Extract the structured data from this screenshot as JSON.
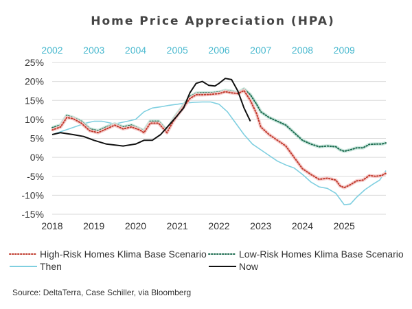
{
  "chart_data": {
    "type": "line",
    "title": "Home Price Appreciation (HPA)",
    "xlabel": "",
    "ylabel": "",
    "x_axis": {
      "range": [
        2018.0,
        2026.0
      ],
      "ticks": [
        2018,
        2019,
        2020,
        2021,
        2022,
        2023,
        2024,
        2025
      ],
      "tick_labels": [
        "2018",
        "2019",
        "2020",
        "2021",
        "2022",
        "2023",
        "2024",
        "2025"
      ]
    },
    "top_axis": {
      "tick_labels": [
        "2002",
        "2003",
        "2004",
        "2005",
        "2006",
        "2007",
        "2008",
        "2009"
      ],
      "color": "#4ab9cf"
    },
    "y_axis": {
      "range": [
        -15,
        25
      ],
      "ticks": [
        -15,
        -10,
        -5,
        0,
        5,
        10,
        15,
        20,
        25
      ],
      "tick_labels": [
        "-15%",
        "-10%",
        "-5%",
        "0%",
        "5%",
        "10%",
        "15%",
        "20%",
        "25%"
      ]
    },
    "grid": "horizontal",
    "legend_placement": "bottom",
    "series": [
      {
        "name": "High-Risk Homes Klima Base Scenario",
        "key": "high",
        "color": "#c0392b",
        "style": "dotted",
        "points": [
          [
            2018.0,
            7.2
          ],
          [
            2018.2,
            8.0
          ],
          [
            2018.35,
            10.5
          ],
          [
            2018.5,
            10.2
          ],
          [
            2018.7,
            9.0
          ],
          [
            2018.9,
            7.0
          ],
          [
            2019.1,
            6.5
          ],
          [
            2019.3,
            7.5
          ],
          [
            2019.5,
            8.5
          ],
          [
            2019.7,
            7.5
          ],
          [
            2019.9,
            8.0
          ],
          [
            2020.1,
            7.2
          ],
          [
            2020.2,
            6.5
          ],
          [
            2020.35,
            9.0
          ],
          [
            2020.55,
            9.0
          ],
          [
            2020.75,
            6.5
          ],
          [
            2020.9,
            9.5
          ],
          [
            2021.1,
            12.5
          ],
          [
            2021.3,
            15.5
          ],
          [
            2021.45,
            16.5
          ],
          [
            2021.6,
            16.5
          ],
          [
            2021.8,
            16.6
          ],
          [
            2022.0,
            16.8
          ],
          [
            2022.15,
            17.3
          ],
          [
            2022.3,
            17.0
          ],
          [
            2022.45,
            16.8
          ],
          [
            2022.6,
            17.6
          ],
          [
            2022.75,
            15.0
          ],
          [
            2022.9,
            11.5
          ],
          [
            2023.0,
            8.0
          ],
          [
            2023.2,
            6.0
          ],
          [
            2023.4,
            4.5
          ],
          [
            2023.6,
            3.0
          ],
          [
            2023.8,
            0.0
          ],
          [
            2024.0,
            -3.0
          ],
          [
            2024.2,
            -4.5
          ],
          [
            2024.4,
            -5.8
          ],
          [
            2024.6,
            -5.5
          ],
          [
            2024.8,
            -6.0
          ],
          [
            2024.9,
            -7.5
          ],
          [
            2025.0,
            -8.0
          ],
          [
            2025.15,
            -7.2
          ],
          [
            2025.3,
            -6.2
          ],
          [
            2025.45,
            -6.0
          ],
          [
            2025.6,
            -4.8
          ],
          [
            2025.75,
            -5.0
          ],
          [
            2025.9,
            -4.8
          ],
          [
            2026.0,
            -4.2
          ]
        ]
      },
      {
        "name": "Low-Risk Homes Klima Base Scenario",
        "key": "low",
        "color": "#1a6b4e",
        "style": "dotted",
        "points": [
          [
            2018.0,
            7.8
          ],
          [
            2018.2,
            8.5
          ],
          [
            2018.35,
            11.0
          ],
          [
            2018.5,
            10.5
          ],
          [
            2018.7,
            9.5
          ],
          [
            2018.9,
            7.5
          ],
          [
            2019.1,
            7.0
          ],
          [
            2019.3,
            8.0
          ],
          [
            2019.5,
            8.8
          ],
          [
            2019.7,
            8.0
          ],
          [
            2019.9,
            8.5
          ],
          [
            2020.1,
            7.5
          ],
          [
            2020.2,
            7.0
          ],
          [
            2020.35,
            9.5
          ],
          [
            2020.55,
            9.5
          ],
          [
            2020.75,
            7.0
          ],
          [
            2020.9,
            10.0
          ],
          [
            2021.1,
            13.0
          ],
          [
            2021.3,
            16.0
          ],
          [
            2021.45,
            16.9
          ],
          [
            2021.6,
            17.0
          ],
          [
            2021.8,
            17.0
          ],
          [
            2022.0,
            17.2
          ],
          [
            2022.15,
            17.6
          ],
          [
            2022.3,
            17.4
          ],
          [
            2022.45,
            17.0
          ],
          [
            2022.6,
            18.0
          ],
          [
            2022.75,
            16.5
          ],
          [
            2022.9,
            14.0
          ],
          [
            2023.0,
            12.0
          ],
          [
            2023.2,
            10.5
          ],
          [
            2023.4,
            9.5
          ],
          [
            2023.6,
            8.5
          ],
          [
            2023.8,
            6.5
          ],
          [
            2024.0,
            4.5
          ],
          [
            2024.2,
            3.5
          ],
          [
            2024.4,
            2.8
          ],
          [
            2024.6,
            3.0
          ],
          [
            2024.8,
            2.8
          ],
          [
            2024.9,
            2.0
          ],
          [
            2025.0,
            1.6
          ],
          [
            2025.15,
            2.0
          ],
          [
            2025.3,
            2.5
          ],
          [
            2025.45,
            2.5
          ],
          [
            2025.6,
            3.4
          ],
          [
            2025.75,
            3.5
          ],
          [
            2025.9,
            3.5
          ],
          [
            2026.0,
            3.8
          ]
        ]
      },
      {
        "name": "Then",
        "key": "then",
        "color": "#7fcfe0",
        "style": "solid",
        "points": [
          [
            2018.0,
            6.0
          ],
          [
            2018.4,
            7.5
          ],
          [
            2018.8,
            9.0
          ],
          [
            2019.0,
            9.5
          ],
          [
            2019.2,
            9.5
          ],
          [
            2019.5,
            8.8
          ],
          [
            2019.8,
            9.5
          ],
          [
            2020.0,
            10.0
          ],
          [
            2020.2,
            12.0
          ],
          [
            2020.4,
            13.0
          ],
          [
            2020.6,
            13.3
          ],
          [
            2020.8,
            13.7
          ],
          [
            2021.0,
            14.0
          ],
          [
            2021.2,
            14.3
          ],
          [
            2021.4,
            14.5
          ],
          [
            2021.6,
            14.6
          ],
          [
            2021.8,
            14.6
          ],
          [
            2022.0,
            14.0
          ],
          [
            2022.2,
            12.0
          ],
          [
            2022.4,
            9.0
          ],
          [
            2022.6,
            6.0
          ],
          [
            2022.8,
            3.5
          ],
          [
            2023.0,
            2.0
          ],
          [
            2023.2,
            0.5
          ],
          [
            2023.4,
            -1.0
          ],
          [
            2023.6,
            -2.0
          ],
          [
            2023.8,
            -2.8
          ],
          [
            2024.0,
            -4.5
          ],
          [
            2024.2,
            -6.5
          ],
          [
            2024.4,
            -7.8
          ],
          [
            2024.6,
            -8.2
          ],
          [
            2024.8,
            -9.5
          ],
          [
            2024.9,
            -11.0
          ],
          [
            2025.0,
            -12.5
          ],
          [
            2025.15,
            -12.3
          ],
          [
            2025.3,
            -10.5
          ],
          [
            2025.5,
            -8.5
          ],
          [
            2025.7,
            -7.0
          ],
          [
            2025.85,
            -6.0
          ],
          [
            2026.0,
            -3.5
          ]
        ]
      },
      {
        "name": "Now",
        "key": "now",
        "color": "#111111",
        "style": "solid",
        "points": [
          [
            2018.0,
            6.0
          ],
          [
            2018.2,
            6.5
          ],
          [
            2018.5,
            6.0
          ],
          [
            2018.75,
            5.5
          ],
          [
            2019.0,
            4.5
          ],
          [
            2019.3,
            3.5
          ],
          [
            2019.7,
            3.0
          ],
          [
            2020.0,
            3.5
          ],
          [
            2020.2,
            4.5
          ],
          [
            2020.4,
            4.5
          ],
          [
            2020.6,
            6.0
          ],
          [
            2020.8,
            8.5
          ],
          [
            2021.0,
            11.0
          ],
          [
            2021.15,
            13.0
          ],
          [
            2021.3,
            17.0
          ],
          [
            2021.45,
            19.5
          ],
          [
            2021.6,
            20.0
          ],
          [
            2021.75,
            19.0
          ],
          [
            2021.9,
            18.8
          ],
          [
            2022.0,
            19.5
          ],
          [
            2022.15,
            20.8
          ],
          [
            2022.3,
            20.5
          ],
          [
            2022.45,
            17.5
          ],
          [
            2022.6,
            13.0
          ],
          [
            2022.75,
            9.5
          ]
        ]
      }
    ]
  },
  "legend": [
    {
      "key": "high",
      "label": "High-Risk Homes Klima Base Scenario"
    },
    {
      "key": "low",
      "label": "Low-Risk Homes Klima Base Scenario"
    },
    {
      "key": "then",
      "label": "Then"
    },
    {
      "key": "now",
      "label": "Now"
    }
  ],
  "source": "Source: DeltaTerra, Case Schiller, via Bloomberg"
}
